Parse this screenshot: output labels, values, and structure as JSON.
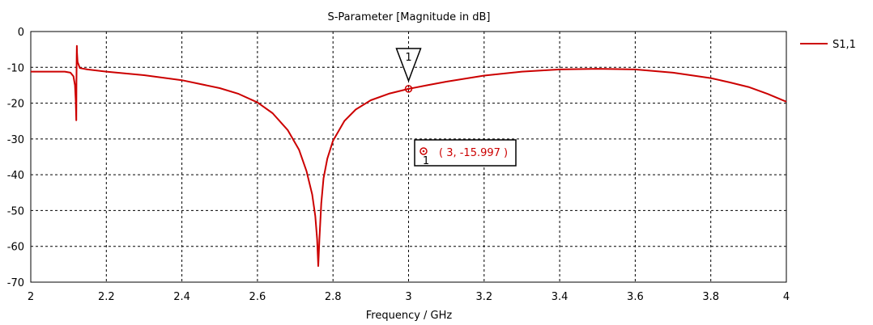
{
  "chart_data": {
    "type": "line",
    "title": "S-Parameter [Magnitude in dB]",
    "xlabel": "Frequency / GHz",
    "ylabel": "",
    "xlim": [
      2,
      4
    ],
    "ylim": [
      -70,
      0
    ],
    "x_ticks": [
      "2",
      "2.2",
      "2.4",
      "2.6",
      "2.8",
      "3",
      "3.2",
      "3.4",
      "3.6",
      "3.8",
      "4"
    ],
    "y_ticks": [
      "0",
      "-10",
      "-20",
      "-30",
      "-40",
      "-50",
      "-60",
      "-70"
    ],
    "grid": true,
    "legend_position": "top-right",
    "series": [
      {
        "name": "S1,1",
        "color": "#cc0000",
        "points": [
          [
            2.0,
            -11.2
          ],
          [
            2.05,
            -11.2
          ],
          [
            2.09,
            -11.2
          ],
          [
            2.105,
            -11.5
          ],
          [
            2.113,
            -12.5
          ],
          [
            2.117,
            -15.0
          ],
          [
            2.119,
            -19.0
          ],
          [
            2.1205,
            -24.8
          ],
          [
            2.121,
            -14.0
          ],
          [
            2.1215,
            -7.0
          ],
          [
            2.122,
            -4.0
          ],
          [
            2.1225,
            -6.0
          ],
          [
            2.124,
            -8.5
          ],
          [
            2.13,
            -10.2
          ],
          [
            2.15,
            -10.6
          ],
          [
            2.2,
            -11.2
          ],
          [
            2.3,
            -12.2
          ],
          [
            2.4,
            -13.6
          ],
          [
            2.5,
            -15.8
          ],
          [
            2.55,
            -17.4
          ],
          [
            2.6,
            -19.8
          ],
          [
            2.64,
            -22.8
          ],
          [
            2.68,
            -27.5
          ],
          [
            2.71,
            -33.0
          ],
          [
            2.73,
            -39.0
          ],
          [
            2.745,
            -45.5
          ],
          [
            2.753,
            -51.5
          ],
          [
            2.758,
            -58.0
          ],
          [
            2.761,
            -65.5
          ],
          [
            2.764,
            -58.0
          ],
          [
            2.769,
            -48.0
          ],
          [
            2.775,
            -41.0
          ],
          [
            2.785,
            -35.5
          ],
          [
            2.8,
            -30.5
          ],
          [
            2.83,
            -25.0
          ],
          [
            2.86,
            -21.8
          ],
          [
            2.9,
            -19.2
          ],
          [
            2.95,
            -17.3
          ],
          [
            3.0,
            -16.0
          ],
          [
            3.05,
            -15.0
          ],
          [
            3.1,
            -14.0
          ],
          [
            3.2,
            -12.3
          ],
          [
            3.3,
            -11.2
          ],
          [
            3.4,
            -10.6
          ],
          [
            3.5,
            -10.4
          ],
          [
            3.6,
            -10.6
          ],
          [
            3.7,
            -11.5
          ],
          [
            3.8,
            -13.0
          ],
          [
            3.85,
            -14.2
          ],
          [
            3.9,
            -15.5
          ],
          [
            3.95,
            -17.4
          ],
          [
            4.0,
            -19.6
          ]
        ]
      }
    ],
    "annotations": [
      {
        "label": "1",
        "x": 3,
        "y": -15.997,
        "readout": "( 3, -15.997 )"
      }
    ]
  }
}
